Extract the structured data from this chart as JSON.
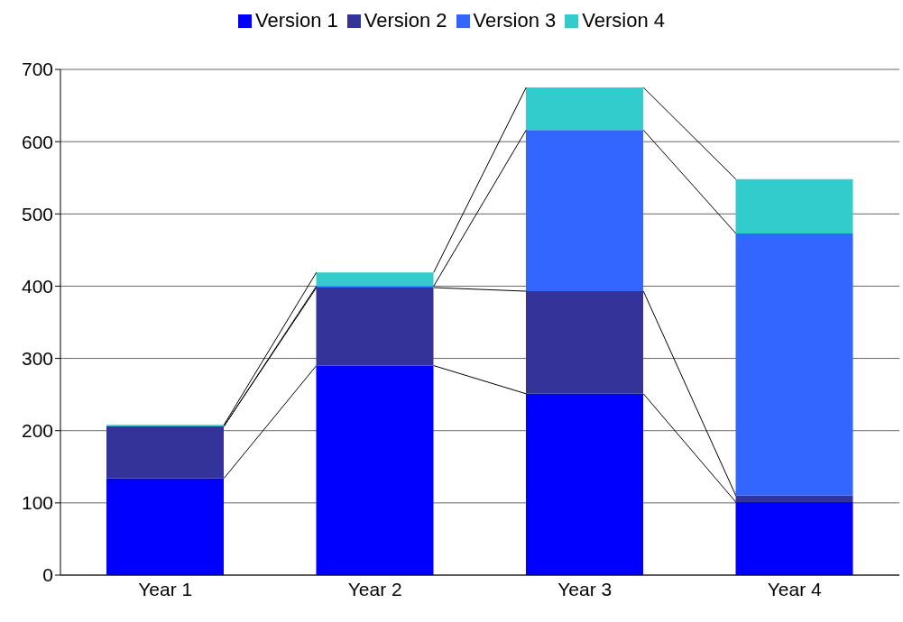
{
  "chart_data": {
    "type": "bar",
    "stacked": true,
    "categories": [
      "Year 1",
      "Year 2",
      "Year 3",
      "Year 4"
    ],
    "series": [
      {
        "name": "Version 1",
        "color": "#0000ff",
        "values": [
          134,
          290,
          251,
          101
        ]
      },
      {
        "name": "Version 2",
        "color": "#333399",
        "values": [
          72,
          108,
          142,
          9
        ]
      },
      {
        "name": "Version 3",
        "color": "#3366ff",
        "values": [
          0,
          2,
          223,
          363
        ]
      },
      {
        "name": "Version 4",
        "color": "#33cccc",
        "values": [
          2,
          19,
          59,
          75
        ]
      }
    ],
    "ylim": [
      0,
      700
    ],
    "yticks": [
      0,
      100,
      200,
      300,
      400,
      500,
      600,
      700
    ],
    "grid": "y",
    "legend": "top"
  }
}
